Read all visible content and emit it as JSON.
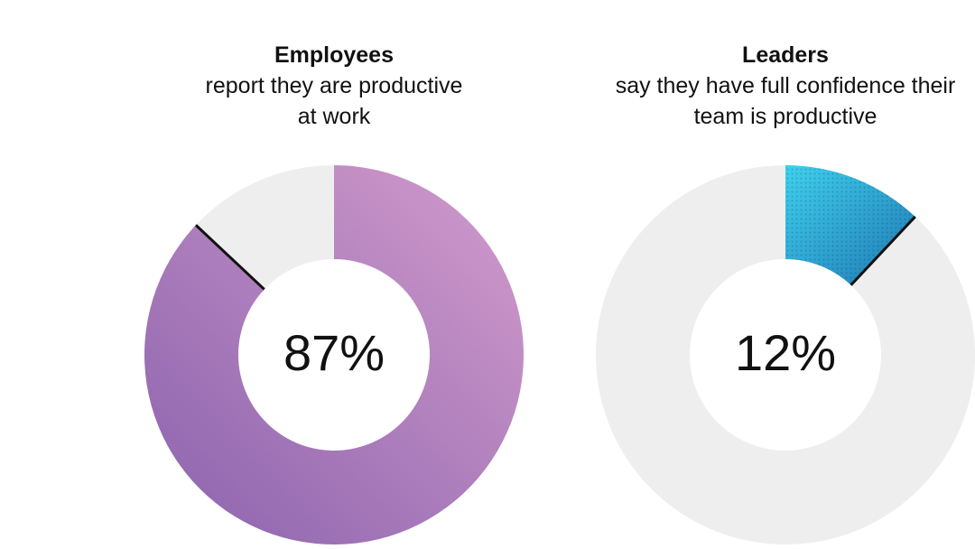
{
  "chart_data": [
    {
      "type": "pie",
      "title": "Employees",
      "subtitle": "report they are productive\nat work",
      "value": 87,
      "center_label": "87%",
      "colors": {
        "fill_start": "#d39ccc",
        "fill_end": "#8a62ad",
        "remainder": "#eeeeee",
        "divider": "#111111"
      }
    },
    {
      "type": "pie",
      "title": "Leaders",
      "subtitle": "say they have full confidence their\nteam is productive",
      "value": 12,
      "center_label": "12%",
      "colors": {
        "fill_start": "#3fd0ee",
        "fill_end": "#1f78b4",
        "remainder": "#eeeeee",
        "divider": "#111111"
      }
    }
  ]
}
